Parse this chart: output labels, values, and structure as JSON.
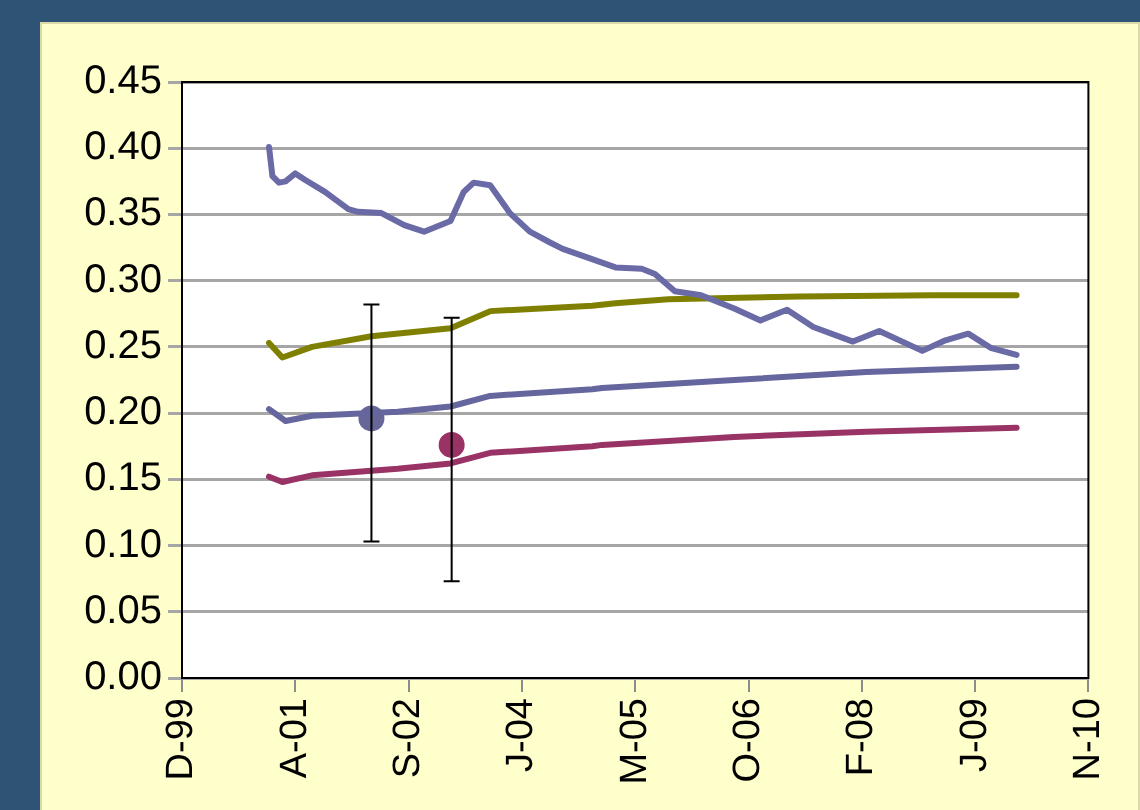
{
  "chart_data": {
    "type": "line",
    "xlim": [
      "1999-12-06",
      "2010-11-18"
    ],
    "xticks": [
      {
        "value": "1999-12-06",
        "label": "D-99"
      },
      {
        "value": "2001-04-19",
        "label": "A-01"
      },
      {
        "value": "2002-09-01",
        "label": "S-02"
      },
      {
        "value": "2004-01-14",
        "label": "J-04"
      },
      {
        "value": "2005-05-28",
        "label": "M-05"
      },
      {
        "value": "2006-10-10",
        "label": "O-06"
      },
      {
        "value": "2008-02-22",
        "label": "F-08"
      },
      {
        "value": "2009-07-06",
        "label": "J-09"
      },
      {
        "value": "2010-11-18",
        "label": "N-10"
      }
    ],
    "ylim": [
      0,
      0.45
    ],
    "yticks": [
      {
        "value": 0,
        "label": "0.00"
      },
      {
        "value": 0.05,
        "label": "0.05"
      },
      {
        "value": 0.1,
        "label": "0.10"
      },
      {
        "value": 0.15,
        "label": "0.15"
      },
      {
        "value": 0.2,
        "label": "0.20"
      },
      {
        "value": 0.25,
        "label": "0.25"
      },
      {
        "value": 0.3,
        "label": "0.30"
      },
      {
        "value": 0.35,
        "label": "0.35"
      },
      {
        "value": 0.4,
        "label": "0.40"
      },
      {
        "value": 0.45,
        "label": "0.45"
      }
    ],
    "grid": "y",
    "legend": false,
    "marker": "none",
    "line_style": "solid",
    "series": [
      {
        "color": "#6a6aa6",
        "x": [
          "2000-12-24",
          "2001-01-08",
          "2001-02-06",
          "2001-03-07",
          "2001-04-19",
          "2001-06-02",
          "2001-08-28",
          "2001-12-09",
          "2002-01-21",
          "2002-05-04",
          "2002-08-13",
          "2002-11-08",
          "2003-03-05",
          "2003-05-02",
          "2003-06-15",
          "2003-08-27",
          "2003-11-22",
          "2004-02-18",
          "2004-05-15",
          "2004-07-12",
          "2004-11-06",
          "2005-03-02",
          "2005-06-26",
          "2005-08-23",
          "2005-11-19",
          "2006-03-15",
          "2006-08-08",
          "2006-12-02",
          "2007-03-29",
          "2007-07-23",
          "2008-01-14",
          "2008-05-09",
          "2008-11-15",
          "2009-02-25",
          "2009-06-06",
          "2009-09-16",
          "2010-01-05"
        ],
        "values": [
          0.401,
          0.379,
          0.374,
          0.375,
          0.381,
          0.376,
          0.367,
          0.354,
          0.352,
          0.351,
          0.342,
          0.337,
          0.345,
          0.367,
          0.374,
          0.372,
          0.351,
          0.337,
          0.329,
          0.324,
          0.317,
          0.31,
          0.309,
          0.305,
          0.292,
          0.289,
          0.279,
          0.27,
          0.278,
          0.265,
          0.254,
          0.262,
          0.247,
          0.255,
          0.26,
          0.249,
          0.244
        ]
      },
      {
        "color": "#808000",
        "x": [
          "2000-12-24",
          "2001-02-21",
          "2001-07-02",
          "2002-03-21",
          "2003-03-05",
          "2003-08-27",
          "2004-11-20",
          "2005-03-02",
          "2005-10-21",
          "2007-05-26",
          "2008-12-28",
          "2010-01-05"
        ],
        "values": [
          0.253,
          0.242,
          0.25,
          0.258,
          0.264,
          0.277,
          0.281,
          0.283,
          0.286,
          0.288,
          0.289,
          0.289
        ]
      },
      {
        "color": "#66669e",
        "x": [
          "2000-12-24",
          "2001-03-07",
          "2001-07-02",
          "2002-07-15",
          "2003-03-05",
          "2003-08-27",
          "2004-11-20",
          "2005-01-02",
          "2006-08-08",
          "2008-03-12",
          "2010-01-05"
        ],
        "values": [
          0.203,
          0.194,
          0.198,
          0.201,
          0.205,
          0.213,
          0.218,
          0.219,
          0.225,
          0.231,
          0.235
        ]
      },
      {
        "color": "#993366",
        "x": [
          "2000-12-24",
          "2001-02-21",
          "2001-07-02",
          "2002-07-15",
          "2003-03-05",
          "2003-08-27",
          "2004-11-20",
          "2005-01-02",
          "2006-08-08",
          "2008-03-12",
          "2010-01-05"
        ],
        "values": [
          0.152,
          0.148,
          0.153,
          0.158,
          0.162,
          0.17,
          0.175,
          0.176,
          0.182,
          0.186,
          0.189
        ]
      },
      {
        "type": "scatter",
        "marker": "circle",
        "color": "#666699",
        "x": [
          "2002-03-21"
        ],
        "values": [
          0.196
        ],
        "errors": [
          [
            0.103,
            0.282
          ]
        ]
      },
      {
        "type": "scatter",
        "marker": "circle",
        "color": "#993366",
        "x": [
          "2003-03-10"
        ],
        "values": [
          0.176
        ],
        "errors": [
          [
            0.073,
            0.272
          ]
        ]
      }
    ]
  }
}
